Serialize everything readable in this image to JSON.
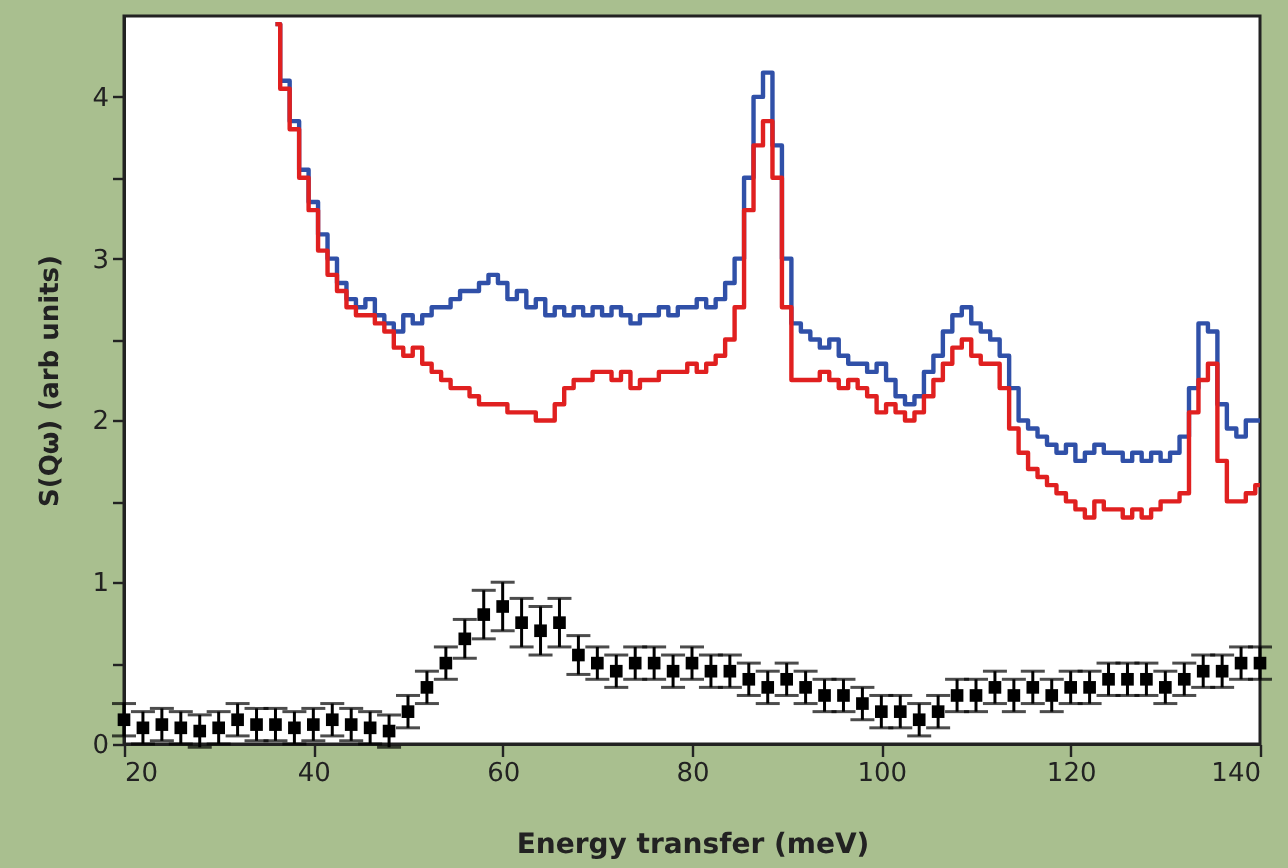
{
  "chart_data": {
    "type": "step",
    "xlabel": "Energy transfer (meV)",
    "ylabel": "S(Qω) (arb units)",
    "xlim": [
      20,
      140
    ],
    "ylim": [
      0,
      4.5
    ],
    "xticks": [
      20,
      40,
      60,
      80,
      100,
      120,
      140
    ],
    "yticks": [
      0,
      {
        "value": 0.5,
        "label": null
      },
      1,
      {
        "value": 1.5,
        "label": null
      },
      2,
      {
        "value": 2.5,
        "label": null
      },
      3,
      {
        "value": 3.5,
        "label": null
      },
      4
    ],
    "grid": false,
    "series": [
      {
        "color": "#3050a8",
        "x": [
          36,
          37,
          38,
          39,
          40,
          41,
          42,
          43,
          44,
          45,
          46,
          47,
          48,
          49,
          50,
          51,
          52,
          53,
          54,
          55,
          56,
          57,
          58,
          59,
          60,
          61,
          62,
          63,
          64,
          65,
          66,
          67,
          68,
          69,
          70,
          71,
          72,
          73,
          74,
          75,
          76,
          77,
          78,
          79,
          80,
          81,
          82,
          83,
          84,
          85,
          86,
          87,
          88,
          89,
          90,
          91,
          92,
          93,
          94,
          95,
          96,
          97,
          98,
          99,
          100,
          101,
          102,
          103,
          104,
          105,
          106,
          107,
          108,
          109,
          110,
          111,
          112,
          113,
          114,
          115,
          116,
          117,
          118,
          119,
          120,
          121,
          122,
          123,
          124,
          125,
          126,
          127,
          128,
          129,
          130,
          131,
          132,
          133,
          134,
          135,
          136,
          137,
          138,
          139,
          140
        ],
        "values": [
          4.45,
          4.1,
          3.85,
          3.55,
          3.35,
          3.15,
          3.0,
          2.85,
          2.75,
          2.7,
          2.75,
          2.65,
          2.6,
          2.55,
          2.65,
          2.6,
          2.65,
          2.7,
          2.7,
          2.75,
          2.8,
          2.8,
          2.85,
          2.9,
          2.85,
          2.75,
          2.8,
          2.7,
          2.75,
          2.65,
          2.7,
          2.65,
          2.7,
          2.65,
          2.7,
          2.65,
          2.7,
          2.65,
          2.6,
          2.65,
          2.65,
          2.7,
          2.65,
          2.7,
          2.7,
          2.75,
          2.7,
          2.75,
          2.85,
          3.0,
          3.5,
          4.0,
          4.15,
          3.7,
          3.0,
          2.6,
          2.55,
          2.5,
          2.45,
          2.5,
          2.4,
          2.35,
          2.35,
          2.3,
          2.35,
          2.25,
          2.15,
          2.1,
          2.15,
          2.3,
          2.4,
          2.55,
          2.65,
          2.7,
          2.6,
          2.55,
          2.5,
          2.4,
          2.2,
          2.0,
          1.95,
          1.9,
          1.85,
          1.8,
          1.85,
          1.75,
          1.8,
          1.85,
          1.8,
          1.8,
          1.75,
          1.8,
          1.75,
          1.8,
          1.75,
          1.8,
          1.9,
          2.2,
          2.6,
          2.55,
          2.1,
          1.95,
          1.9,
          2.0,
          2.0
        ]
      },
      {
        "color": "#e02020",
        "x": [
          36,
          37,
          38,
          39,
          40,
          41,
          42,
          43,
          44,
          45,
          46,
          47,
          48,
          49,
          50,
          51,
          52,
          53,
          54,
          55,
          56,
          57,
          58,
          59,
          60,
          61,
          62,
          63,
          64,
          65,
          66,
          67,
          68,
          69,
          70,
          71,
          72,
          73,
          74,
          75,
          76,
          77,
          78,
          79,
          80,
          81,
          82,
          83,
          84,
          85,
          86,
          87,
          88,
          89,
          90,
          91,
          92,
          93,
          94,
          95,
          96,
          97,
          98,
          99,
          100,
          101,
          102,
          103,
          104,
          105,
          106,
          107,
          108,
          109,
          110,
          111,
          112,
          113,
          114,
          115,
          116,
          117,
          118,
          119,
          120,
          121,
          122,
          123,
          124,
          125,
          126,
          127,
          128,
          129,
          130,
          131,
          132,
          133,
          134,
          135,
          136,
          137,
          138,
          139,
          140
        ],
        "values": [
          4.45,
          4.05,
          3.8,
          3.5,
          3.3,
          3.05,
          2.9,
          2.8,
          2.7,
          2.65,
          2.65,
          2.6,
          2.55,
          2.45,
          2.4,
          2.45,
          2.35,
          2.3,
          2.25,
          2.2,
          2.2,
          2.15,
          2.1,
          2.1,
          2.1,
          2.05,
          2.05,
          2.05,
          2.0,
          2.0,
          2.1,
          2.2,
          2.25,
          2.25,
          2.3,
          2.3,
          2.25,
          2.3,
          2.2,
          2.25,
          2.25,
          2.3,
          2.3,
          2.3,
          2.35,
          2.3,
          2.35,
          2.4,
          2.5,
          2.7,
          3.3,
          3.7,
          3.85,
          3.5,
          2.7,
          2.25,
          2.25,
          2.25,
          2.3,
          2.25,
          2.2,
          2.25,
          2.2,
          2.15,
          2.05,
          2.1,
          2.05,
          2.0,
          2.05,
          2.15,
          2.25,
          2.35,
          2.45,
          2.5,
          2.4,
          2.35,
          2.35,
          2.2,
          1.95,
          1.8,
          1.7,
          1.65,
          1.6,
          1.55,
          1.5,
          1.45,
          1.4,
          1.5,
          1.45,
          1.45,
          1.4,
          1.45,
          1.4,
          1.45,
          1.5,
          1.5,
          1.55,
          2.05,
          2.25,
          2.35,
          1.75,
          1.5,
          1.5,
          1.55,
          1.6
        ]
      },
      {
        "type": "scatter",
        "marker": "square",
        "color": "#000000",
        "x": [
          20,
          22,
          24,
          26,
          28,
          30,
          32,
          34,
          36,
          38,
          40,
          42,
          44,
          46,
          48,
          50,
          52,
          54,
          56,
          58,
          60,
          62,
          64,
          66,
          68,
          70,
          72,
          74,
          76,
          78,
          80,
          82,
          84,
          86,
          88,
          90,
          92,
          94,
          96,
          98,
          100,
          102,
          104,
          106,
          108,
          110,
          112,
          114,
          116,
          118,
          120,
          122,
          124,
          126,
          128,
          130,
          132,
          134,
          136,
          138,
          140
        ],
        "values": [
          0.15,
          0.1,
          0.12,
          0.1,
          0.08,
          0.1,
          0.15,
          0.12,
          0.12,
          0.1,
          0.12,
          0.15,
          0.12,
          0.1,
          0.08,
          0.2,
          0.35,
          0.5,
          0.65,
          0.8,
          0.85,
          0.75,
          0.7,
          0.75,
          0.55,
          0.5,
          0.45,
          0.5,
          0.5,
          0.45,
          0.5,
          0.45,
          0.45,
          0.4,
          0.35,
          0.4,
          0.35,
          0.3,
          0.3,
          0.25,
          0.2,
          0.2,
          0.15,
          0.2,
          0.3,
          0.3,
          0.35,
          0.3,
          0.35,
          0.3,
          0.35,
          0.35,
          0.4,
          0.4,
          0.4,
          0.35,
          0.4,
          0.45,
          0.45,
          0.5,
          0.5
        ],
        "errors": [
          0.1,
          0.1,
          0.1,
          0.1,
          0.1,
          0.1,
          0.1,
          0.1,
          0.1,
          0.1,
          0.1,
          0.1,
          0.1,
          0.1,
          0.1,
          0.1,
          0.1,
          0.1,
          0.12,
          0.15,
          0.15,
          0.15,
          0.15,
          0.15,
          0.12,
          0.1,
          0.1,
          0.1,
          0.1,
          0.1,
          0.1,
          0.1,
          0.1,
          0.1,
          0.1,
          0.1,
          0.1,
          0.1,
          0.1,
          0.1,
          0.1,
          0.1,
          0.1,
          0.1,
          0.1,
          0.1,
          0.1,
          0.1,
          0.1,
          0.1,
          0.1,
          0.1,
          0.1,
          0.1,
          0.1,
          0.1,
          0.1,
          0.1,
          0.1,
          0.1,
          0.1
        ]
      }
    ]
  }
}
